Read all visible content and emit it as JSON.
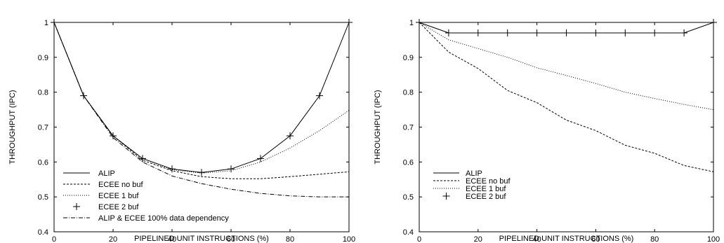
{
  "chart_data": [
    {
      "type": "line",
      "xlabel": "PIPELINED UNIT INSTRUCTIONS (%)",
      "ylabel": "THROUGHPUT (IPC)",
      "xlim": [
        0,
        100
      ],
      "ylim": [
        0.4,
        1.0
      ],
      "xticks": [
        "0",
        "20",
        "40",
        "60",
        "80",
        "100"
      ],
      "yticks": [
        "0.4",
        "0.5",
        "0.6",
        "0.7",
        "0.8",
        "0.9",
        "1"
      ],
      "grid": false,
      "legend_position": "bottom-left",
      "series": [
        {
          "name": "ALIP",
          "style": "solid",
          "x": [
            0,
            10,
            20,
            30,
            40,
            50,
            60,
            70,
            80,
            90,
            100
          ],
          "y": [
            1.0,
            0.79,
            0.675,
            0.61,
            0.58,
            0.57,
            0.58,
            0.61,
            0.675,
            0.79,
            1.0
          ]
        },
        {
          "name": "ECEE no buf",
          "style": "dashed",
          "x": [
            0,
            10,
            20,
            30,
            40,
            50,
            60,
            70,
            80,
            90,
            100
          ],
          "y": [
            1.0,
            0.79,
            0.675,
            0.605,
            0.575,
            0.558,
            0.552,
            0.552,
            0.558,
            0.565,
            0.572
          ]
        },
        {
          "name": "ECEE 1 buf",
          "style": "dotted",
          "x": [
            0,
            10,
            20,
            30,
            40,
            50,
            60,
            70,
            80,
            90,
            100
          ],
          "y": [
            1.0,
            0.79,
            0.675,
            0.61,
            0.578,
            0.568,
            0.575,
            0.6,
            0.64,
            0.69,
            0.748
          ]
        },
        {
          "name": "ECEE 2 buf",
          "style": "plus",
          "x": [
            0,
            10,
            20,
            30,
            40,
            50,
            60,
            70,
            80,
            90,
            100
          ],
          "y": [
            1.0,
            0.79,
            0.675,
            0.61,
            0.58,
            0.57,
            0.58,
            0.61,
            0.675,
            0.79,
            1.0
          ]
        },
        {
          "name": "ALIP & ECEE 100% data dependency",
          "style": "dashdot",
          "x": [
            0,
            10,
            20,
            30,
            40,
            50,
            60,
            70,
            80,
            90,
            100
          ],
          "y": [
            1.0,
            0.79,
            0.67,
            0.6,
            0.56,
            0.538,
            0.522,
            0.51,
            0.503,
            0.5,
            0.5
          ]
        }
      ]
    },
    {
      "type": "line",
      "xlabel": "PIPELINED UNIT INSTRUCTIONS (%)",
      "ylabel": "THROUGHPUT (IPC)",
      "xlim": [
        0,
        100
      ],
      "ylim": [
        0.4,
        1.0
      ],
      "xticks": [
        "0",
        "20",
        "40",
        "60",
        "80",
        "100"
      ],
      "yticks": [
        "0.4",
        "0.5",
        "0.6",
        "0.7",
        "0.8",
        "0.9",
        "1"
      ],
      "grid": false,
      "legend_position": "bottom-left",
      "series": [
        {
          "name": "ALIP",
          "style": "solid",
          "x": [
            0,
            10,
            20,
            30,
            40,
            50,
            60,
            70,
            80,
            90,
            100
          ],
          "y": [
            1.0,
            0.97,
            0.97,
            0.97,
            0.97,
            0.97,
            0.97,
            0.97,
            0.97,
            0.97,
            1.0
          ]
        },
        {
          "name": "ECEE no buf",
          "style": "dashed",
          "x": [
            0,
            10,
            20,
            30,
            40,
            50,
            60,
            70,
            80,
            90,
            100
          ],
          "y": [
            1.0,
            0.915,
            0.868,
            0.805,
            0.77,
            0.72,
            0.69,
            0.648,
            0.625,
            0.59,
            0.572
          ]
        },
        {
          "name": "ECEE 1 buf",
          "style": "dotted",
          "x": [
            0,
            10,
            20,
            30,
            40,
            50,
            60,
            70,
            80,
            90,
            100
          ],
          "y": [
            1.0,
            0.95,
            0.925,
            0.9,
            0.87,
            0.848,
            0.825,
            0.8,
            0.782,
            0.765,
            0.75
          ]
        },
        {
          "name": "ECEE 2 buf",
          "style": "plus",
          "x": [
            0,
            10,
            20,
            30,
            40,
            50,
            60,
            70,
            80,
            90,
            100
          ],
          "y": [
            1.0,
            0.97,
            0.97,
            0.97,
            0.97,
            0.97,
            0.97,
            0.97,
            0.97,
            0.97,
            1.0
          ]
        }
      ]
    }
  ]
}
